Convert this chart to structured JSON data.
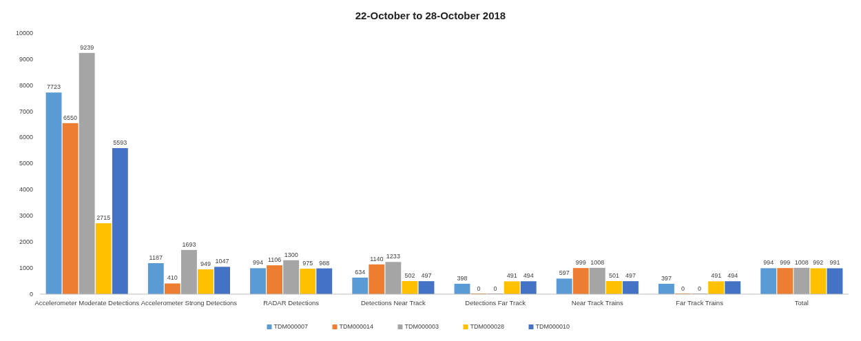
{
  "chart_data": {
    "type": "bar",
    "title": "22-October to 28-October 2018",
    "categories": [
      "Accelerometer Moderate Detections",
      "Accelerometer Strong Detections",
      "RADAR Detections",
      "Detections Near Track",
      "Detections Far Track",
      "Near Track Trains",
      "Far Track Trains",
      "Total"
    ],
    "series": [
      {
        "name": "TDM000007",
        "color": "#5b9bd5",
        "values": [
          7723,
          1187,
          994,
          634,
          398,
          597,
          397,
          994
        ]
      },
      {
        "name": "TDM000014",
        "color": "#ed7d31",
        "values": [
          6550,
          410,
          1106,
          1140,
          0,
          999,
          0,
          999
        ]
      },
      {
        "name": "TDM000003",
        "color": "#a5a5a5",
        "values": [
          9239,
          1693,
          1300,
          1233,
          0,
          1008,
          0,
          1008
        ]
      },
      {
        "name": "TDM000028",
        "color": "#ffc000",
        "values": [
          2715,
          949,
          975,
          502,
          491,
          501,
          491,
          992
        ]
      },
      {
        "name": "TDM000010",
        "color": "#4472c4",
        "values": [
          5593,
          1047,
          988,
          497,
          494,
          497,
          494,
          991
        ]
      }
    ],
    "ylim": [
      0,
      10000
    ],
    "yticks": [
      0,
      1000,
      2000,
      3000,
      4000,
      5000,
      6000,
      7000,
      8000,
      9000,
      10000
    ],
    "grid": false,
    "legend": "bottom",
    "data_labels": true
  }
}
